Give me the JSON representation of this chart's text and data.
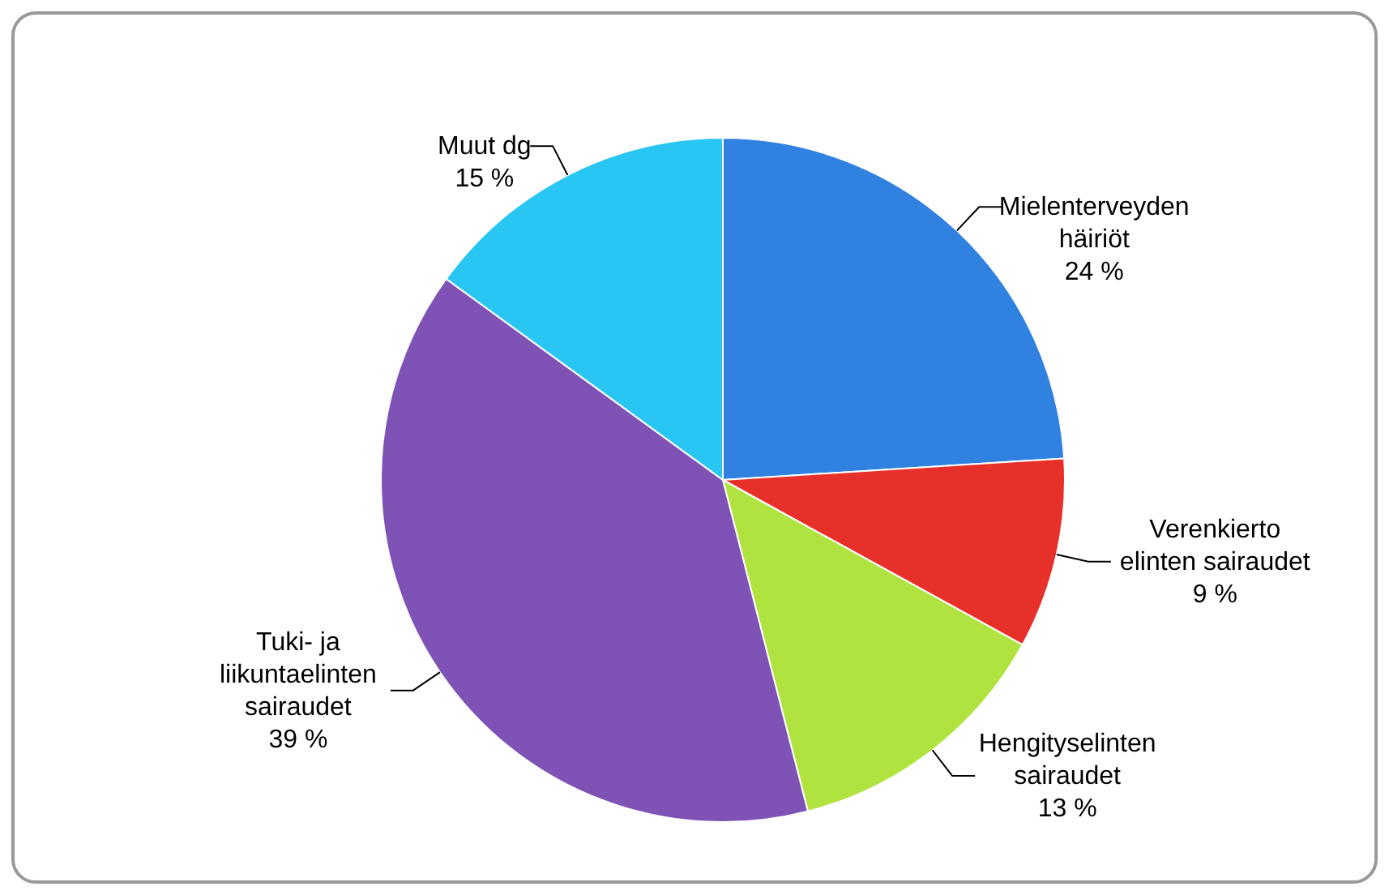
{
  "chart_data": {
    "type": "pie",
    "categories": [
      "Mielenterveyden\nhäiriöt",
      "Verenkierto\nelinten sairaudet",
      "Hengityselinten\nsairaudet",
      "Tuki- ja\nliikuntaelinten\nsairaudet",
      "Muut dg"
    ],
    "values": [
      24,
      9,
      13,
      39,
      15
    ],
    "value_labels": [
      "24 %",
      "9 %",
      "13 %",
      "39 %",
      "15 %"
    ],
    "colors": [
      "#3182e0",
      "#e8302a",
      "#b0e340",
      "#7f52b5",
      "#29c6f4"
    ]
  }
}
